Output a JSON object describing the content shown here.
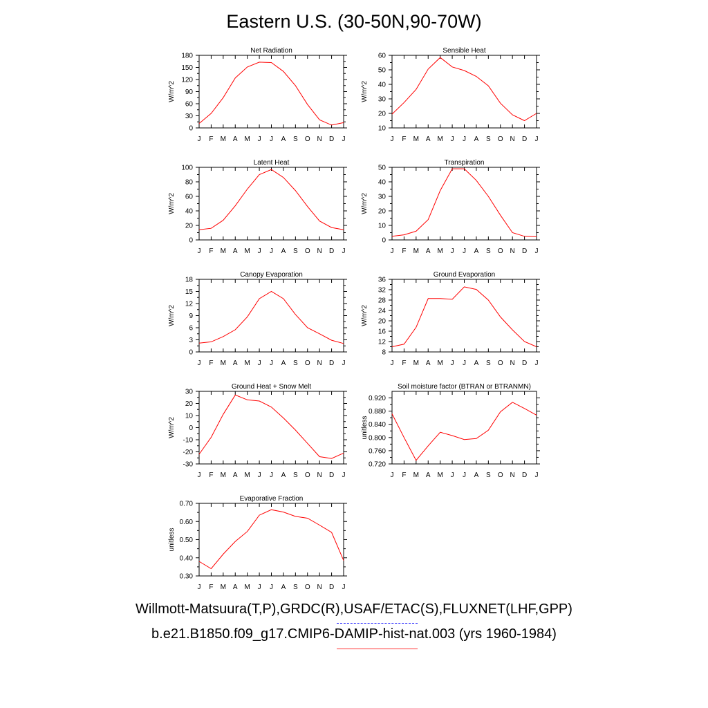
{
  "title": "Eastern U.S. (30-50N,90-70W)",
  "colors": {
    "model_line": "#ff0000",
    "obs_line": "#3030ff",
    "axis": "#000000"
  },
  "legend": {
    "obs_label": "Willmott-Matsuura(T,P),GRDC(R),USAF/ETAC(S),FLUXNET(LHF,GPP)",
    "model_label": "b.e21.B1850.f09_g17.CMIP6-DAMIP-hist-nat.003 (yrs 1960-1984)"
  },
  "chart_data": [
    {
      "type": "line",
      "title": "Net Radiation",
      "xlabel": "",
      "ylabel": "W/m^2",
      "categories": [
        "J",
        "F",
        "M",
        "A",
        "M",
        "J",
        "J",
        "A",
        "S",
        "O",
        "N",
        "D",
        "J"
      ],
      "ylim": [
        0,
        180
      ],
      "yticks": [
        0,
        30,
        60,
        90,
        120,
        150,
        180
      ],
      "ytick_labels": [
        "0",
        "30",
        "60",
        "90",
        "120",
        "150",
        "180"
      ],
      "series": [
        {
          "values": [
            11,
            36,
            75,
            124,
            151,
            163,
            162,
            140,
            105,
            58,
            20,
            7,
            13
          ]
        }
      ]
    },
    {
      "type": "line",
      "title": "Sensible Heat",
      "xlabel": "",
      "ylabel": "W/m^2",
      "categories": [
        "J",
        "F",
        "M",
        "A",
        "M",
        "J",
        "J",
        "A",
        "S",
        "O",
        "N",
        "D",
        "J"
      ],
      "ylim": [
        10,
        60
      ],
      "yticks": [
        10,
        20,
        30,
        40,
        50,
        60
      ],
      "ytick_labels": [
        "10",
        "20",
        "30",
        "40",
        "50",
        "60"
      ],
      "series": [
        {
          "values": [
            19.5,
            27.5,
            36.5,
            50.5,
            58.5,
            52,
            49.5,
            45.5,
            39,
            27,
            19,
            15,
            20
          ]
        }
      ]
    },
    {
      "type": "line",
      "title": "Latent Heat",
      "xlabel": "",
      "ylabel": "W/m^2",
      "categories": [
        "J",
        "F",
        "M",
        "A",
        "M",
        "J",
        "J",
        "A",
        "S",
        "O",
        "N",
        "D",
        "J"
      ],
      "ylim": [
        0,
        100
      ],
      "yticks": [
        0,
        20,
        40,
        60,
        80,
        100
      ],
      "ytick_labels": [
        "0",
        "20",
        "40",
        "60",
        "80",
        "100"
      ],
      "series": [
        {
          "values": [
            14,
            16,
            27,
            47,
            70,
            90,
            97,
            86,
            68,
            46,
            26,
            17,
            14
          ]
        }
      ]
    },
    {
      "type": "line",
      "title": "Transpiration",
      "xlabel": "",
      "ylabel": "W/m^2",
      "categories": [
        "J",
        "F",
        "M",
        "A",
        "M",
        "J",
        "J",
        "A",
        "S",
        "O",
        "N",
        "D",
        "J"
      ],
      "ylim": [
        0,
        50
      ],
      "yticks": [
        0,
        10,
        20,
        30,
        40,
        50
      ],
      "ytick_labels": [
        "0",
        "10",
        "20",
        "30",
        "40",
        "50"
      ],
      "series": [
        {
          "values": [
            2.5,
            3.5,
            6,
            14,
            34,
            49,
            49,
            41,
            30,
            17,
            5,
            2.5,
            2.2
          ]
        }
      ]
    },
    {
      "type": "line",
      "title": "Canopy Evaporation",
      "xlabel": "",
      "ylabel": "W/m^2",
      "categories": [
        "J",
        "F",
        "M",
        "A",
        "M",
        "J",
        "J",
        "A",
        "S",
        "O",
        "N",
        "D",
        "J"
      ],
      "ylim": [
        0,
        18
      ],
      "yticks": [
        0,
        3,
        6,
        9,
        12,
        15,
        18
      ],
      "ytick_labels": [
        "0",
        "3",
        "6",
        "9",
        "12",
        "15",
        "18"
      ],
      "series": [
        {
          "values": [
            2.2,
            2.5,
            3.8,
            5.5,
            8.7,
            13.2,
            15,
            13.2,
            9.3,
            6,
            4.5,
            2.9,
            2.1
          ]
        }
      ]
    },
    {
      "type": "line",
      "title": "Ground Evaporation",
      "xlabel": "",
      "ylabel": "W/m^2",
      "categories": [
        "J",
        "F",
        "M",
        "A",
        "M",
        "J",
        "J",
        "A",
        "S",
        "O",
        "N",
        "D",
        "J"
      ],
      "ylim": [
        8,
        36
      ],
      "yticks": [
        8,
        12,
        16,
        20,
        24,
        28,
        32,
        36
      ],
      "ytick_labels": [
        "8",
        "12",
        "16",
        "20",
        "24",
        "28",
        "32",
        "36"
      ],
      "series": [
        {
          "values": [
            10,
            11,
            17.5,
            28.6,
            28.6,
            28.3,
            33.1,
            32.1,
            28,
            21.5,
            16.5,
            12,
            10
          ]
        }
      ]
    },
    {
      "type": "line",
      "title": "Ground Heat + Snow Melt",
      "xlabel": "",
      "ylabel": "W/m^2",
      "categories": [
        "J",
        "F",
        "M",
        "A",
        "M",
        "J",
        "J",
        "A",
        "S",
        "O",
        "N",
        "D",
        "J"
      ],
      "ylim": [
        -30,
        30
      ],
      "yticks": [
        -30,
        -20,
        -10,
        0,
        10,
        20,
        30
      ],
      "ytick_labels": [
        "-30",
        "-20",
        "-10",
        "0",
        "10",
        "20",
        "30"
      ],
      "series": [
        {
          "values": [
            -22,
            -8,
            11,
            27,
            23,
            22,
            17,
            8,
            -2,
            -13,
            -24,
            -25.5,
            -21
          ]
        }
      ]
    },
    {
      "type": "line",
      "title": "Soil moisture factor (BTRAN or BTRANMN)",
      "xlabel": "",
      "ylabel": "unitless",
      "categories": [
        "J",
        "F",
        "M",
        "A",
        "M",
        "J",
        "J",
        "A",
        "S",
        "O",
        "N",
        "D",
        "J"
      ],
      "ylim": [
        0.72,
        0.94
      ],
      "yticks": [
        0.72,
        0.76,
        0.8,
        0.84,
        0.88,
        0.92
      ],
      "ytick_labels": [
        "0.720",
        "0.760",
        "0.800",
        "0.840",
        "0.880",
        "0.920"
      ],
      "series": [
        {
          "values": [
            0.872,
            0.8,
            0.731,
            0.775,
            0.816,
            0.806,
            0.794,
            0.797,
            0.822,
            0.878,
            0.907,
            0.888,
            0.868
          ]
        }
      ]
    },
    {
      "type": "line",
      "title": "Evaporative Fraction",
      "xlabel": "",
      "ylabel": "unitless",
      "categories": [
        "J",
        "F",
        "M",
        "A",
        "M",
        "J",
        "J",
        "A",
        "S",
        "O",
        "N",
        "D",
        "J"
      ],
      "ylim": [
        0.3,
        0.7
      ],
      "yticks": [
        0.3,
        0.4,
        0.5,
        0.6,
        0.7
      ],
      "ytick_labels": [
        "0.30",
        "0.40",
        "0.50",
        "0.60",
        "0.70"
      ],
      "series": [
        {
          "values": [
            0.38,
            0.34,
            0.42,
            0.49,
            0.545,
            0.635,
            0.665,
            0.652,
            0.628,
            0.618,
            0.58,
            0.54,
            0.385
          ]
        }
      ]
    }
  ]
}
